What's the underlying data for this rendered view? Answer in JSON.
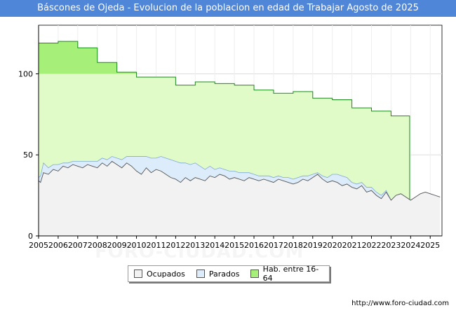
{
  "header": {
    "title": "Báscones de Ojeda - Evolucion de la poblacion en edad de Trabajar Agosto de 2025"
  },
  "footer": {
    "url": "http://www.foro-ciudad.com"
  },
  "watermark": {
    "text": "FORO-CIUDAD.COM"
  },
  "colors": {
    "title_bg": "#4f86d8",
    "hab_fill": "#e1fbc8",
    "hab_fill_top": "#a6f07a",
    "hab_line": "#1a8a1a",
    "parados_fill": "#dcecfb",
    "parados_line": "#7fa9d9",
    "ocupados_fill": "#f2f2f2",
    "ocupados_line": "#555555"
  },
  "chart_data": {
    "type": "area",
    "title": "Báscones de Ojeda - Evolucion de la poblacion en edad de Trabajar Agosto de 2025",
    "xlabel": "",
    "ylabel": "",
    "xlim": [
      2005,
      2025.6
    ],
    "ylim": [
      0,
      130
    ],
    "yticks": [
      0,
      50,
      100
    ],
    "xticks": [
      2005,
      2006,
      2007,
      2008,
      2009,
      2010,
      2011,
      2012,
      2013,
      2014,
      2015,
      2016,
      2017,
      2018,
      2019,
      2020,
      2021,
      2022,
      2023,
      2024,
      2025
    ],
    "grid": true,
    "legend_position": "bottom-center",
    "series": [
      {
        "name": "Ocupados",
        "x": [
          2005.0,
          2005.1,
          2005.25,
          2005.5,
          2005.75,
          2006.0,
          2006.25,
          2006.5,
          2006.75,
          2007.0,
          2007.25,
          2007.5,
          2007.75,
          2008.0,
          2008.25,
          2008.5,
          2008.75,
          2009.0,
          2009.25,
          2009.5,
          2009.75,
          2010.0,
          2010.25,
          2010.5,
          2010.75,
          2011.0,
          2011.25,
          2011.5,
          2011.75,
          2012.0,
          2012.25,
          2012.5,
          2012.75,
          2013.0,
          2013.25,
          2013.5,
          2013.75,
          2014.0,
          2014.25,
          2014.5,
          2014.75,
          2015.0,
          2015.25,
          2015.5,
          2015.75,
          2016.0,
          2016.25,
          2016.5,
          2016.75,
          2017.0,
          2017.25,
          2017.5,
          2017.75,
          2018.0,
          2018.25,
          2018.5,
          2018.75,
          2019.0,
          2019.25,
          2019.5,
          2019.75,
          2020.0,
          2020.25,
          2020.5,
          2020.75,
          2021.0,
          2021.25,
          2021.5,
          2021.75,
          2022.0,
          2022.25,
          2022.5,
          2022.75,
          2023.0,
          2023.25,
          2023.5,
          2023.75,
          2024.0,
          2024.25,
          2024.5,
          2024.75,
          2025.0,
          2025.25,
          2025.5
        ],
        "values": [
          34,
          33,
          39,
          38,
          41,
          40,
          43,
          42,
          44,
          43,
          42,
          44,
          43,
          42,
          45,
          43,
          46,
          44,
          42,
          45,
          43,
          40,
          38,
          42,
          39,
          41,
          40,
          38,
          36,
          35,
          33,
          36,
          34,
          36,
          35,
          34,
          37,
          36,
          38,
          37,
          35,
          36,
          35,
          34,
          36,
          35,
          34,
          35,
          34,
          33,
          35,
          34,
          33,
          32,
          33,
          35,
          34,
          36,
          38,
          35,
          33,
          34,
          33,
          31,
          32,
          30,
          29,
          31,
          27,
          28,
          25,
          23,
          27,
          22,
          25,
          26,
          24,
          22,
          24,
          26,
          27,
          26,
          25,
          24
        ]
      },
      {
        "name": "Parados",
        "x": [
          2005.0,
          2005.1,
          2005.25,
          2005.5,
          2005.75,
          2006.0,
          2006.25,
          2006.5,
          2006.75,
          2007.0,
          2007.25,
          2007.5,
          2007.75,
          2008.0,
          2008.25,
          2008.5,
          2008.75,
          2009.0,
          2009.25,
          2009.5,
          2009.75,
          2010.0,
          2010.25,
          2010.5,
          2010.75,
          2011.0,
          2011.25,
          2011.5,
          2011.75,
          2012.0,
          2012.25,
          2012.5,
          2012.75,
          2013.0,
          2013.25,
          2013.5,
          2013.75,
          2014.0,
          2014.25,
          2014.5,
          2014.75,
          2015.0,
          2015.25,
          2015.5,
          2015.75,
          2016.0,
          2016.25,
          2016.5,
          2016.75,
          2017.0,
          2017.25,
          2017.5,
          2017.75,
          2018.0,
          2018.25,
          2018.5,
          2018.75,
          2019.0,
          2019.25,
          2019.5,
          2019.75,
          2020.0,
          2020.25,
          2020.5,
          2020.75,
          2021.0,
          2021.25,
          2021.5,
          2021.75,
          2022.0,
          2022.25,
          2022.5,
          2022.75,
          2023.0,
          2023.25,
          2023.5,
          2023.75,
          2024.0,
          2024.25,
          2024.5,
          2024.75,
          2025.0,
          2025.25,
          2025.5
        ],
        "values": [
          2,
          4,
          6,
          4,
          3,
          4,
          2,
          3,
          2,
          3,
          4,
          2,
          3,
          4,
          3,
          4,
          3,
          4,
          5,
          4,
          6,
          9,
          11,
          7,
          9,
          7,
          9,
          10,
          11,
          11,
          12,
          9,
          10,
          9,
          8,
          7,
          6,
          5,
          4,
          4,
          5,
          4,
          4,
          5,
          3,
          3,
          3,
          2,
          3,
          3,
          2,
          2,
          3,
          3,
          3,
          2,
          3,
          2,
          1,
          2,
          3,
          4,
          5,
          6,
          4,
          3,
          3,
          2,
          3,
          2,
          2,
          2,
          1,
          0,
          0,
          0,
          0,
          0,
          0,
          0,
          0,
          0,
          0,
          0
        ]
      },
      {
        "name": "Hab. entre 16-64",
        "x": [
          2005.0,
          2006.0,
          2007.0,
          2008.0,
          2009.0,
          2010.0,
          2011.0,
          2012.0,
          2013.0,
          2014.0,
          2015.0,
          2016.0,
          2017.0,
          2018.0,
          2019.0,
          2020.0,
          2021.0,
          2022.0,
          2023.0,
          2023.95
        ],
        "values": [
          119,
          120,
          116,
          107,
          101,
          98,
          98,
          93,
          95,
          94,
          93,
          90,
          88,
          89,
          85,
          84,
          79,
          77,
          74,
          22
        ]
      }
    ]
  }
}
